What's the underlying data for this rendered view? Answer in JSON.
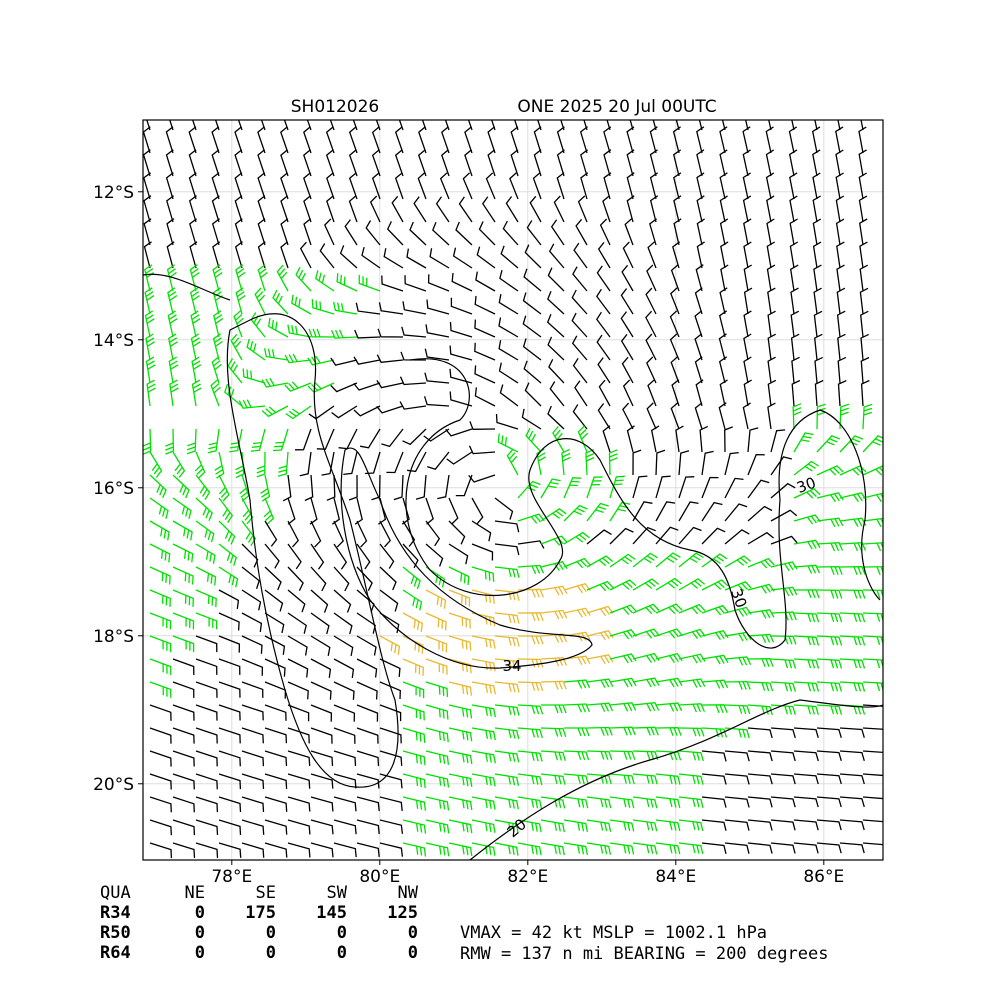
{
  "title_left": "SH012026",
  "title_right": "ONE 2025 20 Jul 00UTC",
  "map": {
    "xlim": [
      76.8,
      86.8
    ],
    "ylim": [
      -21.03,
      -11.03
    ],
    "xticks": [
      {
        "value": 78,
        "label": "78°E"
      },
      {
        "value": 80,
        "label": "80°E"
      },
      {
        "value": 82,
        "label": "82°E"
      },
      {
        "value": 84,
        "label": "84°E"
      },
      {
        "value": 86,
        "label": "86°E"
      }
    ],
    "yticks": [
      {
        "value": -12,
        "label": "12°S"
      },
      {
        "value": -14,
        "label": "14°S"
      },
      {
        "value": -16,
        "label": "16°S"
      },
      {
        "value": -18,
        "label": "18°S"
      },
      {
        "value": -20,
        "label": "20°S"
      }
    ],
    "contour_labels": [
      34,
      30,
      30,
      20
    ]
  },
  "table": {
    "header": [
      "QUA",
      "NE",
      "SE",
      "SW",
      "NW"
    ],
    "rows": [
      [
        "R34",
        0,
        175,
        145,
        125
      ],
      [
        "R50",
        0,
        0,
        0,
        0
      ],
      [
        "R64",
        0,
        0,
        0,
        0
      ]
    ]
  },
  "info": [
    "VMAX =  42 kt MSLP = 1002.1 hPa",
    "RMW = 137 n mi BEARING = 200 degrees"
  ]
}
